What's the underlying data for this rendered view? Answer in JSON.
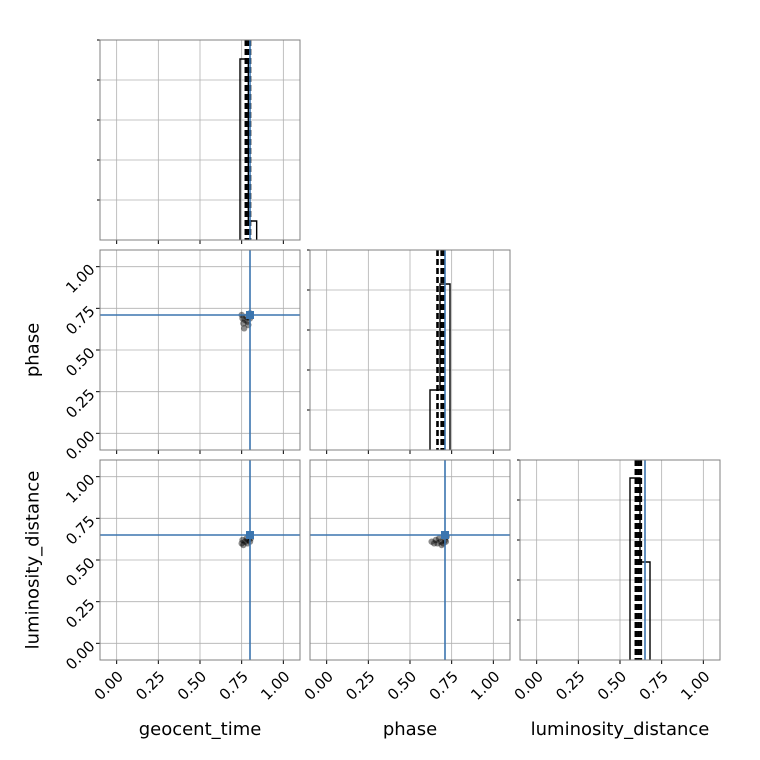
{
  "chart_data": {
    "type": "corner",
    "parameters": [
      "geocent_time",
      "phase",
      "luminosity_distance"
    ],
    "range": [
      -0.1,
      1.1
    ],
    "ticks": [
      0.0,
      0.25,
      0.5,
      0.75,
      1.0
    ],
    "tick_labels": [
      "0.00",
      "0.25",
      "0.50",
      "0.75",
      "1.00"
    ],
    "grid": true,
    "truth_color": "#3b75af",
    "truths": {
      "geocent_time": 0.8,
      "phase": 0.71,
      "luminosity_distance": 0.65
    },
    "quantile_lines": {
      "geocent_time": [
        0.775,
        0.79,
        0.8
      ],
      "phase": [
        0.665,
        0.69,
        0.705
      ],
      "luminosity_distance": [
        0.595,
        0.61,
        0.625
      ]
    },
    "histograms": {
      "geocent_time": {
        "edges": [
          0.74,
          0.79,
          0.84
        ],
        "counts": [
          0.905,
          0.095
        ]
      },
      "phase": {
        "edges": [
          0.62,
          0.68,
          0.74
        ],
        "counts": [
          0.3,
          0.83
        ]
      },
      "luminosity_distance": {
        "edges": [
          0.56,
          0.62,
          0.68
        ],
        "counts": [
          0.91,
          0.49
        ]
      }
    },
    "samples": {
      "phase_vs_geocent_time": [
        [
          0.75,
          0.71
        ],
        [
          0.755,
          0.69
        ],
        [
          0.76,
          0.66
        ],
        [
          0.765,
          0.63
        ],
        [
          0.77,
          0.68
        ],
        [
          0.78,
          0.7
        ],
        [
          0.785,
          0.67
        ],
        [
          0.79,
          0.65
        ],
        [
          0.795,
          0.7
        ],
        [
          0.8,
          0.69
        ],
        [
          0.805,
          0.71
        ],
        [
          0.8,
          0.72
        ]
      ],
      "luminosity_distance_vs_geocent_time": [
        [
          0.75,
          0.6
        ],
        [
          0.755,
          0.62
        ],
        [
          0.76,
          0.59
        ],
        [
          0.77,
          0.61
        ],
        [
          0.78,
          0.63
        ],
        [
          0.785,
          0.6
        ],
        [
          0.79,
          0.62
        ],
        [
          0.795,
          0.64
        ],
        [
          0.8,
          0.61
        ],
        [
          0.805,
          0.63
        ],
        [
          0.8,
          0.65
        ]
      ],
      "luminosity_distance_vs_phase": [
        [
          0.63,
          0.61
        ],
        [
          0.645,
          0.6
        ],
        [
          0.655,
          0.62
        ],
        [
          0.665,
          0.6
        ],
        [
          0.675,
          0.63
        ],
        [
          0.685,
          0.61
        ],
        [
          0.69,
          0.59
        ],
        [
          0.7,
          0.6
        ],
        [
          0.71,
          0.62
        ],
        [
          0.72,
          0.64
        ],
        [
          0.715,
          0.61
        ]
      ]
    }
  }
}
